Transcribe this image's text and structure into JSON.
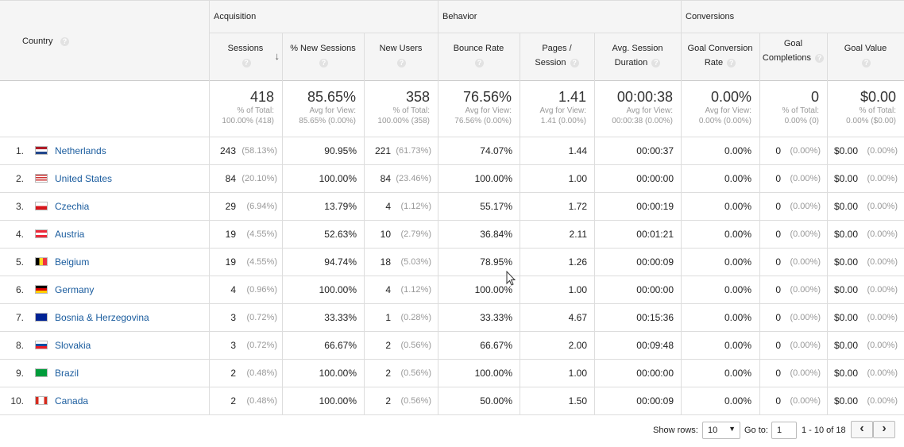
{
  "header": {
    "country": "Country",
    "groups": [
      "Acquisition",
      "Behavior",
      "Conversions"
    ],
    "columns": [
      {
        "l1": "Sessions",
        "l2": ""
      },
      {
        "l1": "% New Sessions",
        "l2": ""
      },
      {
        "l1": "New Users",
        "l2": ""
      },
      {
        "l1": "Bounce Rate",
        "l2": ""
      },
      {
        "l1": "Pages /",
        "l2": "Session"
      },
      {
        "l1": "Avg. Session",
        "l2": "Duration"
      },
      {
        "l1": "Goal Conversion",
        "l2": "Rate"
      },
      {
        "l1": "Goal",
        "l2": "Completions"
      },
      {
        "l1": "Goal Value",
        "l2": ""
      }
    ],
    "help_glyph": "?",
    "sort_glyph": "↓"
  },
  "totals": [
    {
      "big": "418",
      "s1": "% of Total:",
      "s2": "100.00% (418)"
    },
    {
      "big": "85.65%",
      "s1": "Avg for View:",
      "s2": "85.65% (0.00%)"
    },
    {
      "big": "358",
      "s1": "% of Total:",
      "s2": "100.00% (358)"
    },
    {
      "big": "76.56%",
      "s1": "Avg for View:",
      "s2": "76.56% (0.00%)"
    },
    {
      "big": "1.41",
      "s1": "Avg for View:",
      "s2": "1.41 (0.00%)"
    },
    {
      "big": "00:00:38",
      "s1": "Avg for View:",
      "s2": "00:00:38 (0.00%)"
    },
    {
      "big": "0.00%",
      "s1": "Avg for View:",
      "s2": "0.00% (0.00%)"
    },
    {
      "big": "0",
      "s1": "% of Total:",
      "s2": "0.00% (0)"
    },
    {
      "big": "$0.00",
      "s1": "% of Total:",
      "s2": "0.00% ($0.00)"
    }
  ],
  "rows": [
    {
      "n": "1.",
      "country": "Netherlands",
      "flag": "nl",
      "sessions": "243",
      "sessions_pct": "(58.13%)",
      "new_sessions": "90.95%",
      "new_users": "221",
      "new_users_pct": "(61.73%)",
      "bounce": "74.07%",
      "pages": "1.44",
      "duration": "00:00:37",
      "gcr": "0.00%",
      "gc": "0",
      "gc_pct": "(0.00%)",
      "gv": "$0.00",
      "gv_pct": "(0.00%)"
    },
    {
      "n": "2.",
      "country": "United States",
      "flag": "us",
      "sessions": "84",
      "sessions_pct": "(20.10%)",
      "new_sessions": "100.00%",
      "new_users": "84",
      "new_users_pct": "(23.46%)",
      "bounce": "100.00%",
      "pages": "1.00",
      "duration": "00:00:00",
      "gcr": "0.00%",
      "gc": "0",
      "gc_pct": "(0.00%)",
      "gv": "$0.00",
      "gv_pct": "(0.00%)"
    },
    {
      "n": "3.",
      "country": "Czechia",
      "flag": "cz",
      "sessions": "29",
      "sessions_pct": "(6.94%)",
      "new_sessions": "13.79%",
      "new_users": "4",
      "new_users_pct": "(1.12%)",
      "bounce": "55.17%",
      "pages": "1.72",
      "duration": "00:00:19",
      "gcr": "0.00%",
      "gc": "0",
      "gc_pct": "(0.00%)",
      "gv": "$0.00",
      "gv_pct": "(0.00%)"
    },
    {
      "n": "4.",
      "country": "Austria",
      "flag": "at",
      "sessions": "19",
      "sessions_pct": "(4.55%)",
      "new_sessions": "52.63%",
      "new_users": "10",
      "new_users_pct": "(2.79%)",
      "bounce": "36.84%",
      "pages": "2.11",
      "duration": "00:01:21",
      "gcr": "0.00%",
      "gc": "0",
      "gc_pct": "(0.00%)",
      "gv": "$0.00",
      "gv_pct": "(0.00%)"
    },
    {
      "n": "5.",
      "country": "Belgium",
      "flag": "be",
      "sessions": "19",
      "sessions_pct": "(4.55%)",
      "new_sessions": "94.74%",
      "new_users": "18",
      "new_users_pct": "(5.03%)",
      "bounce": "78.95%",
      "pages": "1.26",
      "duration": "00:00:09",
      "gcr": "0.00%",
      "gc": "0",
      "gc_pct": "(0.00%)",
      "gv": "$0.00",
      "gv_pct": "(0.00%)"
    },
    {
      "n": "6.",
      "country": "Germany",
      "flag": "de",
      "sessions": "4",
      "sessions_pct": "(0.96%)",
      "new_sessions": "100.00%",
      "new_users": "4",
      "new_users_pct": "(1.12%)",
      "bounce": "100.00%",
      "pages": "1.00",
      "duration": "00:00:00",
      "gcr": "0.00%",
      "gc": "0",
      "gc_pct": "(0.00%)",
      "gv": "$0.00",
      "gv_pct": "(0.00%)"
    },
    {
      "n": "7.",
      "country": "Bosnia & Herzegovina",
      "flag": "ba",
      "sessions": "3",
      "sessions_pct": "(0.72%)",
      "new_sessions": "33.33%",
      "new_users": "1",
      "new_users_pct": "(0.28%)",
      "bounce": "33.33%",
      "pages": "4.67",
      "duration": "00:15:36",
      "gcr": "0.00%",
      "gc": "0",
      "gc_pct": "(0.00%)",
      "gv": "$0.00",
      "gv_pct": "(0.00%)"
    },
    {
      "n": "8.",
      "country": "Slovakia",
      "flag": "sk",
      "sessions": "3",
      "sessions_pct": "(0.72%)",
      "new_sessions": "66.67%",
      "new_users": "2",
      "new_users_pct": "(0.56%)",
      "bounce": "66.67%",
      "pages": "2.00",
      "duration": "00:09:48",
      "gcr": "0.00%",
      "gc": "0",
      "gc_pct": "(0.00%)",
      "gv": "$0.00",
      "gv_pct": "(0.00%)"
    },
    {
      "n": "9.",
      "country": "Brazil",
      "flag": "br",
      "sessions": "2",
      "sessions_pct": "(0.48%)",
      "new_sessions": "100.00%",
      "new_users": "2",
      "new_users_pct": "(0.56%)",
      "bounce": "100.00%",
      "pages": "1.00",
      "duration": "00:00:00",
      "gcr": "0.00%",
      "gc": "0",
      "gc_pct": "(0.00%)",
      "gv": "$0.00",
      "gv_pct": "(0.00%)"
    },
    {
      "n": "10.",
      "country": "Canada",
      "flag": "ca",
      "sessions": "2",
      "sessions_pct": "(0.48%)",
      "new_sessions": "100.00%",
      "new_users": "2",
      "new_users_pct": "(0.56%)",
      "bounce": "50.00%",
      "pages": "1.50",
      "duration": "00:00:09",
      "gcr": "0.00%",
      "gc": "0",
      "gc_pct": "(0.00%)",
      "gv": "$0.00",
      "gv_pct": "(0.00%)"
    }
  ],
  "footer": {
    "show_rows_label": "Show rows:",
    "show_rows_value": "10",
    "goto_label": "Go to:",
    "goto_value": "1",
    "range": "1 - 10 of 18",
    "prev": "‹",
    "next": "›"
  },
  "colors": {
    "link": "#1a5c9e",
    "header_bg": "#f5f5f5",
    "muted": "#999999"
  }
}
